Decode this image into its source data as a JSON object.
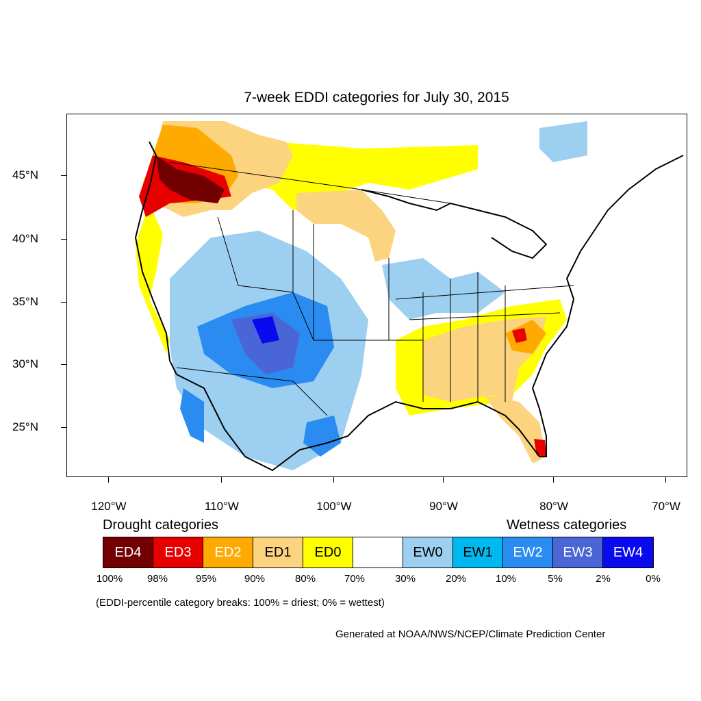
{
  "title": "7-week EDDI categories for July 30, 2015",
  "map": {
    "lat_labels": [
      "45°N",
      "40°N",
      "35°N",
      "30°N",
      "25°N"
    ],
    "lon_labels": [
      "120°W",
      "110°W",
      "100°W",
      "90°W",
      "80°W",
      "70°W"
    ]
  },
  "legend": {
    "drought_heading": "Drought categories",
    "wetness_heading": "Wetness categories",
    "categories": [
      {
        "label": "ED4",
        "color": "#730000",
        "text_color": "#ffffff"
      },
      {
        "label": "ED3",
        "color": "#e60000",
        "text_color": "#ffffff"
      },
      {
        "label": "ED2",
        "color": "#ffaa00",
        "text_color": "#ffffff"
      },
      {
        "label": "ED1",
        "color": "#fcd37f",
        "text_color": "#000000"
      },
      {
        "label": "ED0",
        "color": "#ffff00",
        "text_color": "#000000"
      },
      {
        "label": "",
        "color": "#ffffff",
        "text_color": "#000000"
      },
      {
        "label": "EW0",
        "color": "#9ccff0",
        "text_color": "#000000"
      },
      {
        "label": "EW1",
        "color": "#00b8f0",
        "text_color": "#000000"
      },
      {
        "label": "EW2",
        "color": "#2a8cf0",
        "text_color": "#ffffff"
      },
      {
        "label": "EW3",
        "color": "#4a66d6",
        "text_color": "#ffffff"
      },
      {
        "label": "EW4",
        "color": "#0a0aee",
        "text_color": "#ffffff"
      }
    ],
    "percentiles": [
      "100%",
      "98%",
      "95%",
      "90%",
      "80%",
      "70%",
      "30%",
      "20%",
      "10%",
      "5%",
      "2%",
      "0%"
    ]
  },
  "note": "(EDDI-percentile category breaks: 100% = driest; 0% = wettest)",
  "credit": "Generated at NOAA/NWS/NCEP/Climate Prediction Center"
}
